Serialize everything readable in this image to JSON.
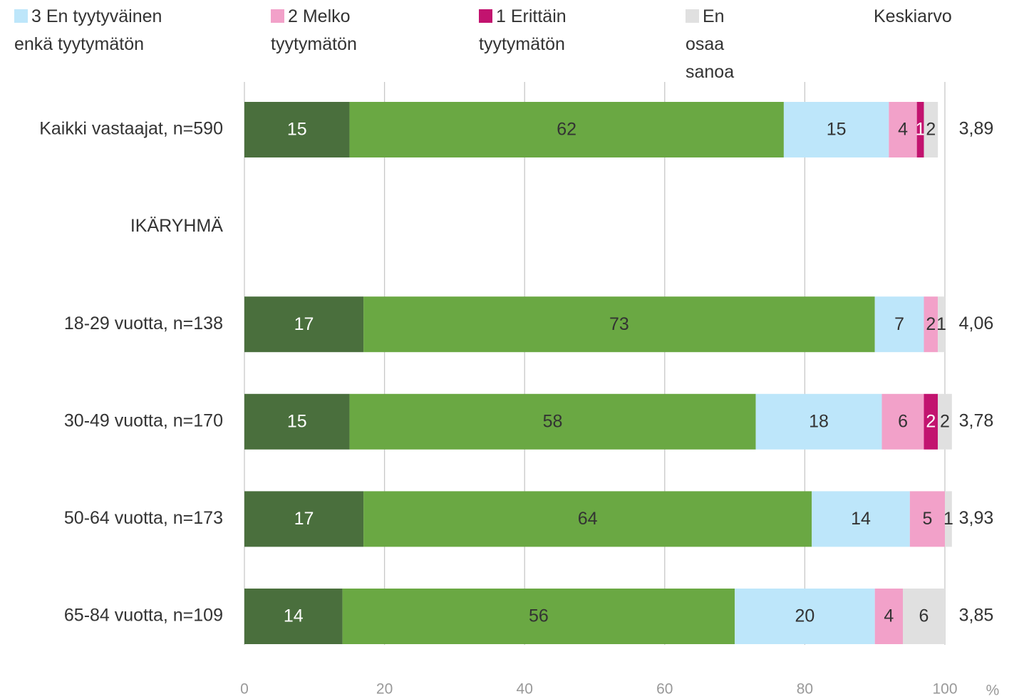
{
  "chart_data": {
    "type": "stacked_bar_horizontal",
    "categories": [
      "Kaikki vastaajat, n=590",
      "IKÄRYHMÄ",
      "18-29 vuotta, n=138",
      "30-49 vuotta, n=170",
      "50-64 vuotta, n=173",
      "65-84 vuotta, n=109"
    ],
    "series": [
      {
        "color": "#4a6f3d",
        "label_color": "#ffffff",
        "values": [
          15,
          null,
          17,
          15,
          17,
          14
        ]
      },
      {
        "color": "#6aa843",
        "label_color": "#333333",
        "values": [
          62,
          null,
          73,
          58,
          64,
          56
        ]
      },
      {
        "name": "3 En tyytyväinen enkä tyytymätön",
        "color": "#bde6fa",
        "label_color": "#333333",
        "values": [
          15,
          null,
          7,
          18,
          14,
          20
        ]
      },
      {
        "name": "2 Melko tyytymätön",
        "color": "#f2a1c9",
        "label_color": "#333333",
        "values": [
          4,
          null,
          2,
          6,
          5,
          4
        ]
      },
      {
        "name": "1 Erittäin tyytymätön",
        "color": "#c2136f",
        "label_color": "#ffffff",
        "values": [
          1,
          null,
          null,
          2,
          null,
          null
        ]
      },
      {
        "name": "En osaa sanoa",
        "color": "#e0e0e0",
        "label_color": "#333333",
        "values": [
          2,
          null,
          1,
          2,
          1,
          6
        ]
      }
    ],
    "mean_title": "Keskiarvo",
    "mean_labels": [
      "3,89",
      null,
      "4,06",
      "3,78",
      "3,93",
      "3,85"
    ],
    "xlim": [
      0,
      100
    ],
    "xticks": [
      0,
      20,
      40,
      60,
      80,
      100
    ],
    "xlabel": "%",
    "grid": true
  }
}
